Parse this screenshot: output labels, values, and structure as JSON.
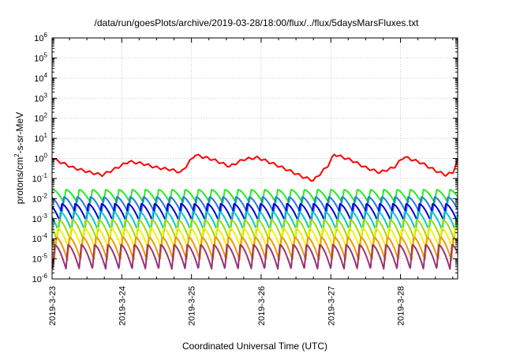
{
  "chart_data": {
    "type": "line",
    "title": "/data/run/goesPlots/archive/2019-03-28/18:00/flux/../flux/5daysMarsFluxes.txt",
    "xlabel": "Coordinated Universal Time (UTC)",
    "ylabel_parts": {
      "base": "protons/cm",
      "sup": "2",
      "rest": "-s-sr-MeV"
    },
    "y_scale": "log",
    "ylim": [
      1e-06,
      1000000.0
    ],
    "y_tick_exponents": [
      -6,
      -5,
      -4,
      -3,
      -2,
      -1,
      0,
      1,
      2,
      3,
      4,
      5,
      6
    ],
    "xlim_days": [
      "2019-03-23",
      "2019-03-28.82"
    ],
    "x_tick_labels": [
      "2019-3-23",
      "2019-3-24",
      "2019-3-25",
      "2019-3-26",
      "2019-3-27",
      "2019-3-28"
    ],
    "grid": true,
    "series": [
      {
        "color": "#ff0000",
        "anchors": [
          [
            0.0,
            1.0
          ],
          [
            0.3,
            0.35
          ],
          [
            0.55,
            0.2
          ],
          [
            0.72,
            0.15
          ],
          [
            0.9,
            0.3
          ],
          [
            1.1,
            0.7
          ],
          [
            1.3,
            0.55
          ],
          [
            1.5,
            0.35
          ],
          [
            1.7,
            0.28
          ],
          [
            1.85,
            0.2
          ],
          [
            2.05,
            1.5
          ],
          [
            2.3,
            0.9
          ],
          [
            2.55,
            0.4
          ],
          [
            2.75,
            0.9
          ],
          [
            2.95,
            1.1
          ],
          [
            3.2,
            0.5
          ],
          [
            3.4,
            0.25
          ],
          [
            3.6,
            0.12
          ],
          [
            3.75,
            0.08
          ],
          [
            3.95,
            0.4
          ],
          [
            4.05,
            1.6
          ],
          [
            4.3,
            0.8
          ],
          [
            4.5,
            0.35
          ],
          [
            4.7,
            0.2
          ],
          [
            4.9,
            0.35
          ],
          [
            5.05,
            1.2
          ],
          [
            5.3,
            0.6
          ],
          [
            5.5,
            0.25
          ],
          [
            5.65,
            0.15
          ],
          [
            5.75,
            0.2
          ],
          [
            5.82,
            0.8
          ]
        ],
        "zig": 0.22,
        "period": 0.12
      },
      {
        "color": "#22ee22",
        "base": 0.028,
        "dip": 4.5,
        "period": 0.19,
        "phase": 0.02
      },
      {
        "color": "#2277ee",
        "base": 0.012,
        "dip": 6.0,
        "period": 0.19,
        "phase": 0.05
      },
      {
        "color": "#0000cc",
        "base": 0.0055,
        "dip": 7.0,
        "period": 0.19,
        "phase": 0.08
      },
      {
        "color": "#00cccc",
        "base": 0.0022,
        "dip": 9.0,
        "period": 0.19,
        "phase": 0.1
      },
      {
        "color": "#99dd00",
        "base": 0.0009,
        "dip": 10.0,
        "period": 0.19,
        "phase": 0.12
      },
      {
        "color": "#ffee00",
        "base": 0.00035,
        "dip": 12.0,
        "period": 0.19,
        "phase": 0.14
      },
      {
        "color": "#ee9900",
        "base": 0.00012,
        "dip": 14.0,
        "period": 0.19,
        "phase": 0.16
      },
      {
        "color": "#993377",
        "base": 5e-05,
        "dip": 16.0,
        "period": 0.19,
        "phase": 0.18
      }
    ]
  }
}
